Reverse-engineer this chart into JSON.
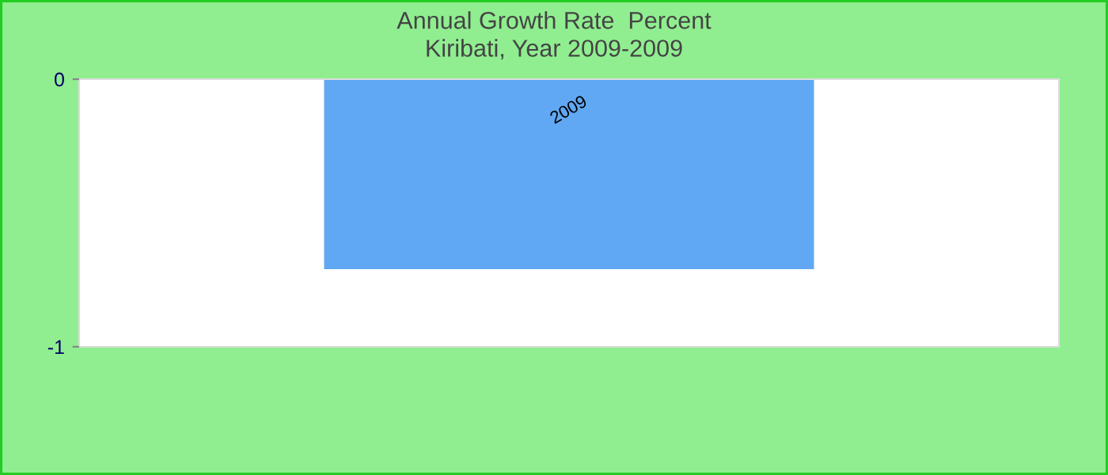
{
  "chart_data": {
    "type": "bar",
    "title": "Annual Growth Rate  Percent",
    "subtitle": "Kiribati, Year 2009-2009",
    "categories": [
      "2009"
    ],
    "series": [
      {
        "color": "#60a8f4",
        "values": [
          -0.71
        ]
      }
    ],
    "ylim": [
      -1,
      0
    ],
    "yticks": [
      0,
      -1
    ],
    "grid": false,
    "legend": false
  }
}
